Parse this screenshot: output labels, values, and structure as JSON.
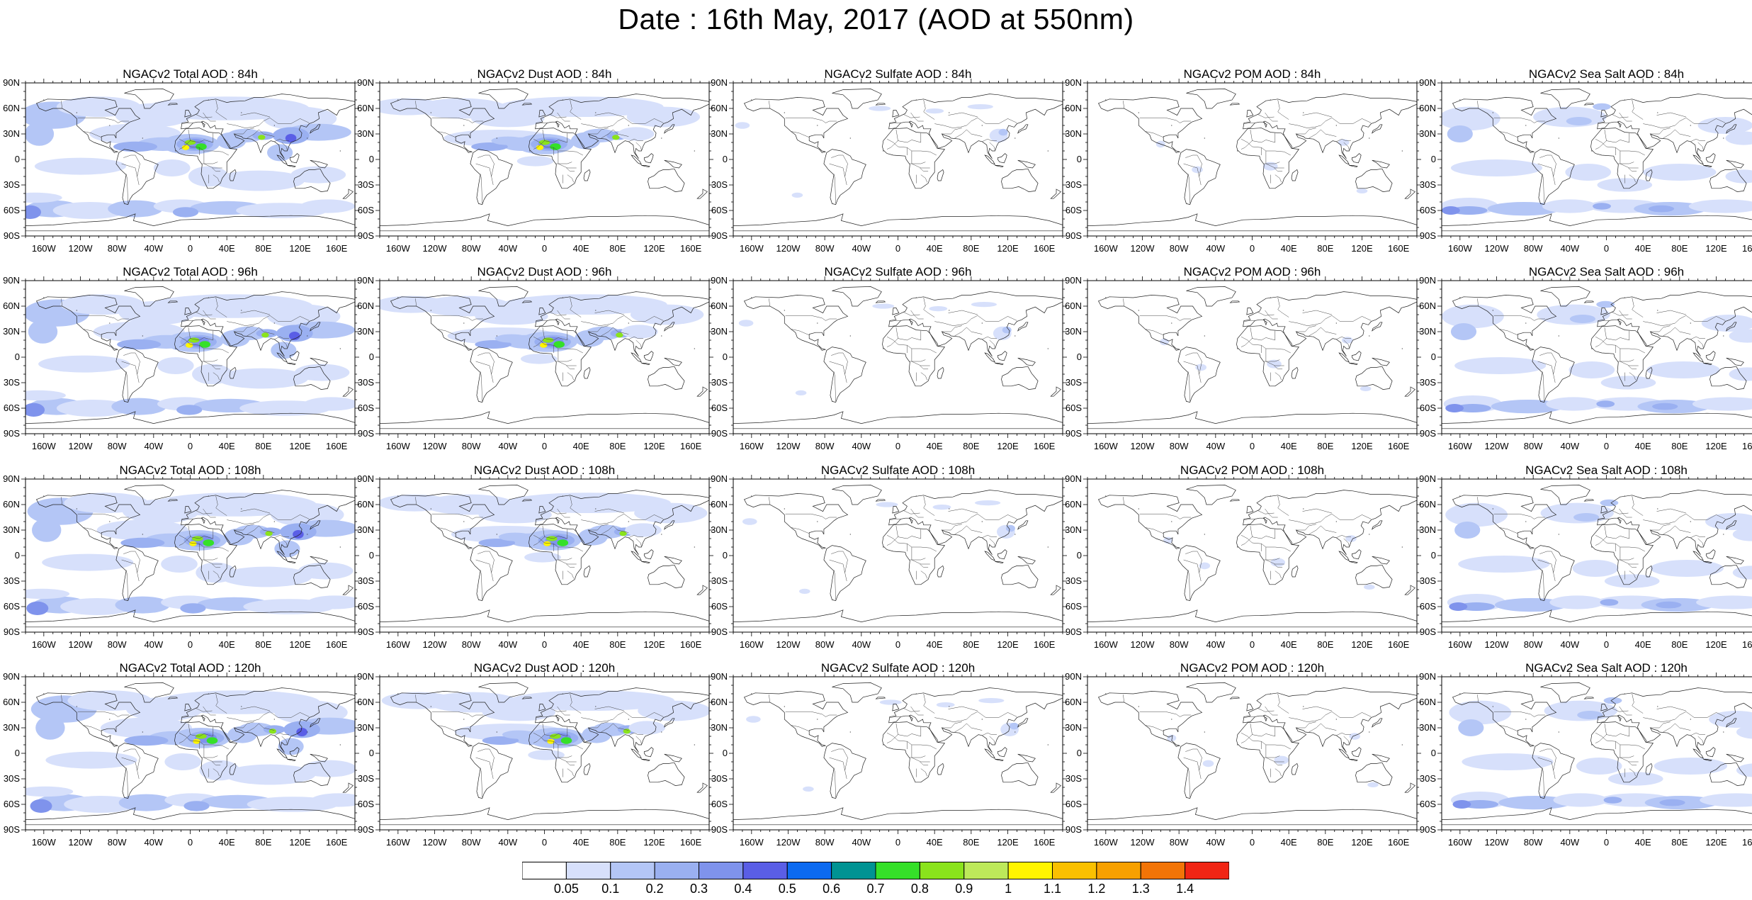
{
  "title": "Date : 16th May, 2017 (AOD at 550nm)",
  "lat_ticks": [
    "90N",
    "60N",
    "30N",
    "0",
    "30S",
    "60S",
    "90S"
  ],
  "lon_ticks": [
    "160W",
    "120W",
    "80W",
    "40W",
    "0",
    "40E",
    "80E",
    "120E",
    "160E"
  ],
  "lat_values": [
    90,
    60,
    30,
    0,
    -30,
    -60,
    -90
  ],
  "lon_values": [
    -160,
    -120,
    -80,
    -40,
    0,
    40,
    80,
    120,
    160
  ],
  "panels": [
    {
      "title": "NGACv2 Total AOD : 84h",
      "species": "total",
      "lead": "84h"
    },
    {
      "title": "NGACv2 Dust AOD : 84h",
      "species": "dust",
      "lead": "84h"
    },
    {
      "title": "NGACv2 Sulfate AOD : 84h",
      "species": "sulfate",
      "lead": "84h"
    },
    {
      "title": "NGACv2 POM AOD : 84h",
      "species": "pom",
      "lead": "84h"
    },
    {
      "title": "NGACv2 Sea Salt AOD : 84h",
      "species": "seasalt",
      "lead": "84h"
    },
    {
      "title": "NGACv2 Total AOD : 96h",
      "species": "total",
      "lead": "96h"
    },
    {
      "title": "NGACv2 Dust AOD : 96h",
      "species": "dust",
      "lead": "96h"
    },
    {
      "title": "NGACv2 Sulfate AOD : 96h",
      "species": "sulfate",
      "lead": "96h"
    },
    {
      "title": "NGACv2 POM AOD : 96h",
      "species": "pom",
      "lead": "96h"
    },
    {
      "title": "NGACv2 Sea Salt AOD : 96h",
      "species": "seasalt",
      "lead": "96h"
    },
    {
      "title": "NGACv2 Total AOD : 108h",
      "species": "total",
      "lead": "108h"
    },
    {
      "title": "NGACv2 Dust AOD : 108h",
      "species": "dust",
      "lead": "108h"
    },
    {
      "title": "NGACv2 Sulfate AOD : 108h",
      "species": "sulfate",
      "lead": "108h"
    },
    {
      "title": "NGACv2 POM AOD : 108h",
      "species": "pom",
      "lead": "108h"
    },
    {
      "title": "NGACv2 Sea Salt AOD : 108h",
      "species": "seasalt",
      "lead": "108h"
    },
    {
      "title": "NGACv2 Total AOD : 120h",
      "species": "total",
      "lead": "120h"
    },
    {
      "title": "NGACv2 Dust AOD : 120h",
      "species": "dust",
      "lead": "120h"
    },
    {
      "title": "NGACv2 Sulfate AOD : 120h",
      "species": "sulfate",
      "lead": "120h"
    },
    {
      "title": "NGACv2 POM AOD : 120h",
      "species": "pom",
      "lead": "120h"
    },
    {
      "title": "NGACv2 Sea Salt  AOD : 120h",
      "species": "seasalt",
      "lead": "120h"
    }
  ],
  "colorbar": {
    "labels": [
      "0.05",
      "0.1",
      "0.2",
      "0.3",
      "0.4",
      "0.5",
      "0.6",
      "0.7",
      "0.8",
      "0.9",
      "1",
      "1.1",
      "1.2",
      "1.3",
      "1.4"
    ],
    "colors": [
      "#ffffff",
      "#d7e0fb",
      "#b4c6f6",
      "#9ab0f1",
      "#7f93ec",
      "#5a5ee6",
      "#0c6af0",
      "#009393",
      "#35e029",
      "#8ae31c",
      "#bde95a",
      "#fff500",
      "#fac000",
      "#f7a000",
      "#f27407",
      "#f12514"
    ]
  }
}
